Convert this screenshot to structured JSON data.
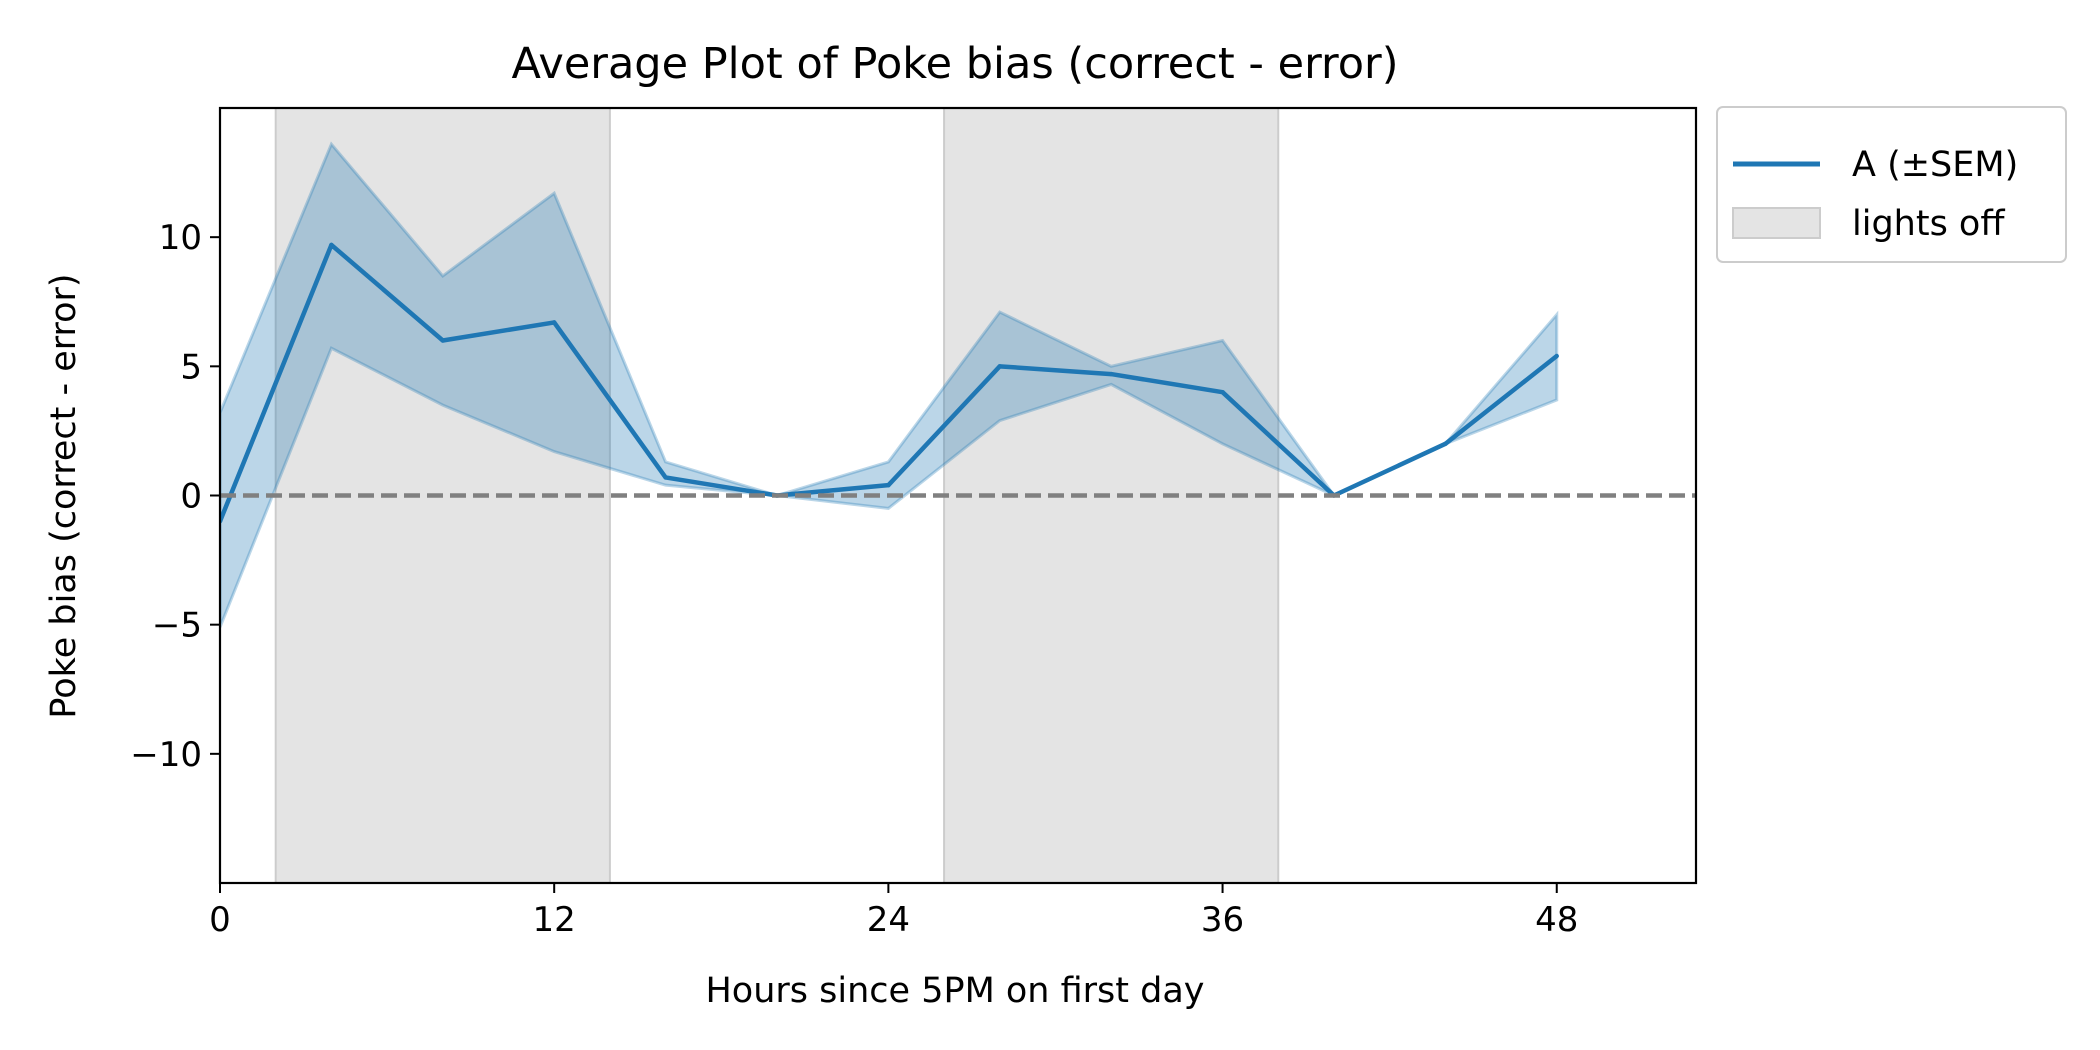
{
  "chart_data": {
    "type": "line",
    "title": "Average Plot of Poke bias (correct - error)",
    "xlabel": "Hours since 5PM on first day",
    "ylabel": "Poke bias (correct - error)",
    "xlim": [
      0,
      53
    ],
    "ylim": [
      -15,
      15
    ],
    "xticks": [
      0,
      12,
      24,
      36,
      48
    ],
    "xtick_labels": [
      "0",
      "12",
      "24",
      "36",
      "48"
    ],
    "yticks": [
      -10,
      -5,
      0,
      5,
      10
    ],
    "ytick_labels": [
      "−10",
      "−5",
      "0",
      "5",
      "10"
    ],
    "grid": false,
    "legend_position": "outside top-right",
    "series": [
      {
        "name": "A (±SEM)",
        "color": "#1f77b4",
        "x": [
          0,
          4,
          8,
          12,
          16,
          20,
          24,
          28,
          32,
          36,
          40,
          44,
          48
        ],
        "y": [
          -1.0,
          9.7,
          6.0,
          6.7,
          0.7,
          0.0,
          0.4,
          5.0,
          4.7,
          4.0,
          0.0,
          2.0,
          5.4
        ],
        "upper": [
          3.2,
          13.6,
          8.5,
          11.7,
          1.3,
          0.0,
          1.3,
          7.1,
          5.0,
          6.0,
          0.0,
          2.0,
          7.0
        ],
        "lower": [
          -5.1,
          5.7,
          3.5,
          1.7,
          0.4,
          0.0,
          -0.5,
          2.9,
          4.3,
          2.0,
          0.0,
          2.0,
          3.7
        ]
      }
    ],
    "shaded_regions": {
      "label": "lights off",
      "color": "#e4e4e4",
      "ranges": [
        [
          2,
          14
        ],
        [
          26,
          38
        ]
      ]
    },
    "reference_line": {
      "y": 0,
      "style": "dashed",
      "color": "#808080"
    }
  }
}
